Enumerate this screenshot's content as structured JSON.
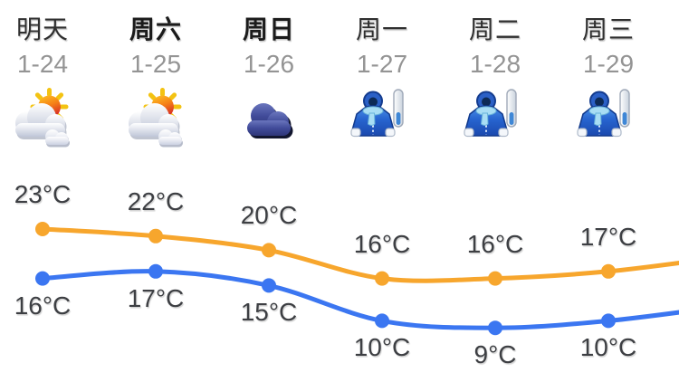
{
  "widget": {
    "background": "#ffffff"
  },
  "forecast": {
    "unit": "°C",
    "days": [
      {
        "name": "明天",
        "date": "1-24",
        "icon": "partly-cloudy",
        "weekend": false,
        "high": 23,
        "low": 16
      },
      {
        "name": "周六",
        "date": "1-25",
        "icon": "partly-cloudy",
        "weekend": true,
        "high": 22,
        "low": 17
      },
      {
        "name": "周日",
        "date": "1-26",
        "icon": "cloudy",
        "weekend": true,
        "high": 20,
        "low": 15
      },
      {
        "name": "周一",
        "date": "1-27",
        "icon": "cold",
        "weekend": false,
        "high": 16,
        "low": 10
      },
      {
        "name": "周二",
        "date": "1-28",
        "icon": "cold",
        "weekend": false,
        "high": 16,
        "low": 9
      },
      {
        "name": "周三",
        "date": "1-29",
        "icon": "cold",
        "weekend": false,
        "high": 17,
        "low": 10
      }
    ]
  },
  "chart_data": {
    "type": "line",
    "categories": [
      "明天 1-24",
      "周六 1-25",
      "周日 1-26",
      "周一 1-27",
      "周二 1-28",
      "周三 1-29"
    ],
    "series": [
      {
        "name": "high",
        "color": "#f7a62d",
        "values": [
          23,
          22,
          20,
          16,
          16,
          17
        ]
      },
      {
        "name": "low",
        "color": "#3b76f1",
        "values": [
          16,
          17,
          15,
          10,
          9,
          10
        ]
      }
    ],
    "unit": "°C",
    "title": "",
    "xlabel": "",
    "ylabel": "",
    "ylim": [
      9,
      23
    ],
    "grid": false,
    "legend": "none",
    "point_labels": true
  },
  "colors": {
    "high_line": "#f7a62d",
    "low_line": "#3b76f1",
    "day_text": "#2f2f2f",
    "weekend_text": "#1b1b1b",
    "date_text": "#949494",
    "temp_text": "#3d3f43"
  }
}
